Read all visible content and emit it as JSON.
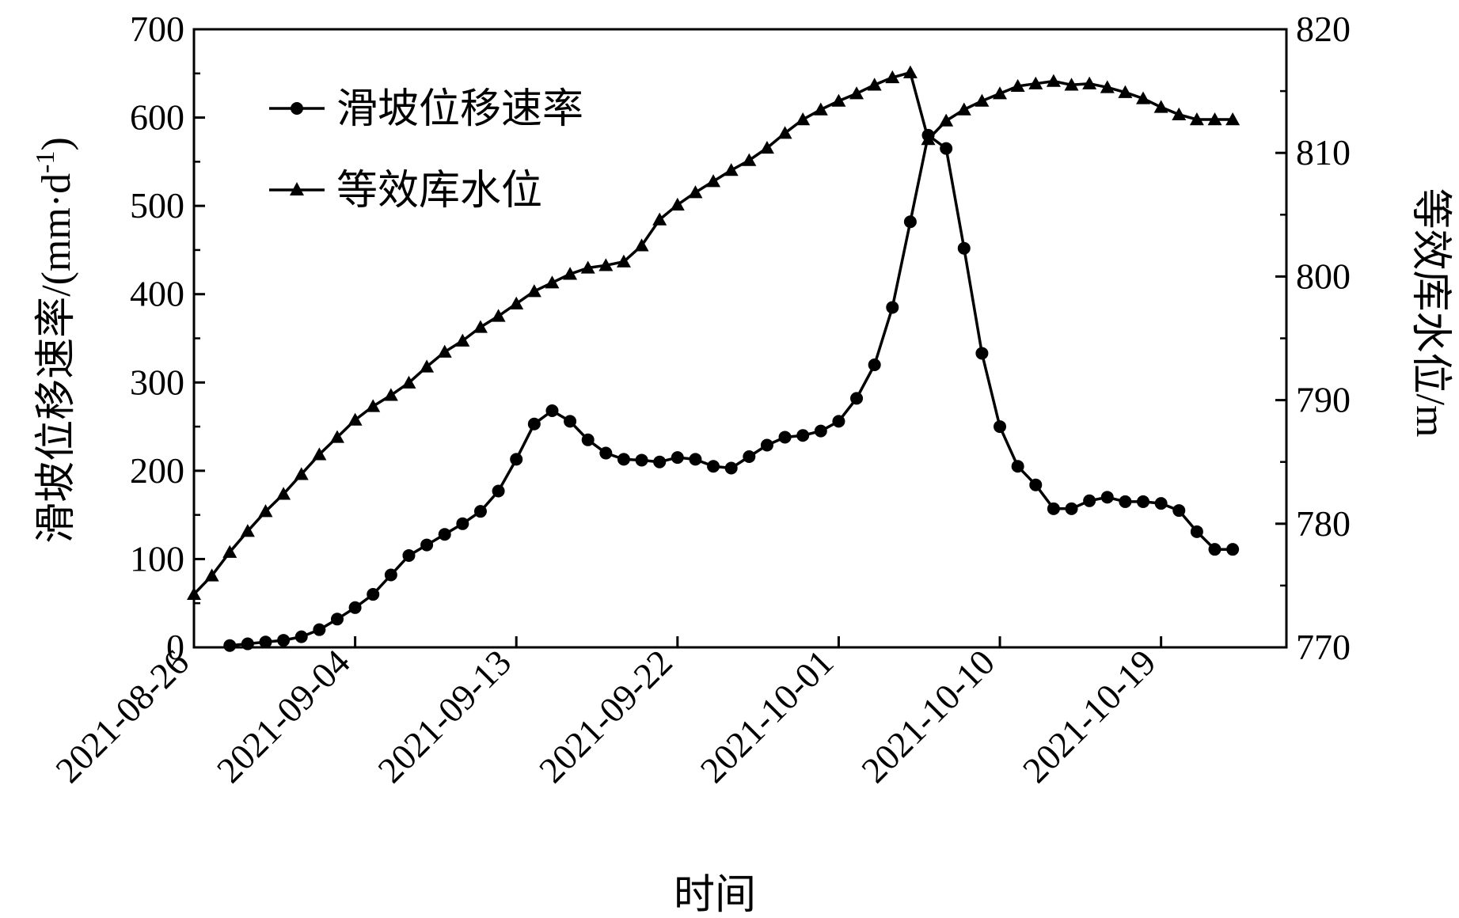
{
  "chart_data": {
    "type": "line",
    "xlabel": "时间",
    "ylabel_left": "滑坡位移速率/(mm·d",
    "ylabel_left_sup": "-1",
    "ylabel_left_close": ")",
    "ylabel_right": "等效库水位/m",
    "x_range": [
      "2021-08-26",
      "2021-10-26"
    ],
    "x_ticks": [
      "2021-08-26",
      "2021-09-04",
      "2021-09-13",
      "2021-09-22",
      "2021-10-01",
      "2021-10-10",
      "2021-10-19"
    ],
    "y_left_range": [
      0,
      700
    ],
    "y_left_ticks": [
      0,
      100,
      200,
      300,
      400,
      500,
      600,
      700
    ],
    "y_right_range": [
      770,
      820
    ],
    "y_right_ticks": [
      770,
      780,
      790,
      800,
      810,
      820
    ],
    "grid": false,
    "legend_position": "top-left",
    "series": [
      {
        "name": "滑坡位移速率",
        "axis": "left",
        "marker": "circle",
        "color": "#000000",
        "x": [
          "2021-08-28",
          "2021-08-29",
          "2021-08-30",
          "2021-08-31",
          "2021-09-01",
          "2021-09-02",
          "2021-09-03",
          "2021-09-04",
          "2021-09-05",
          "2021-09-06",
          "2021-09-07",
          "2021-09-08",
          "2021-09-09",
          "2021-09-10",
          "2021-09-11",
          "2021-09-12",
          "2021-09-13",
          "2021-09-14",
          "2021-09-15",
          "2021-09-16",
          "2021-09-17",
          "2021-09-18",
          "2021-09-19",
          "2021-09-20",
          "2021-09-21",
          "2021-09-22",
          "2021-09-23",
          "2021-09-24",
          "2021-09-25",
          "2021-09-26",
          "2021-09-27",
          "2021-09-28",
          "2021-09-29",
          "2021-09-30",
          "2021-10-01",
          "2021-10-02",
          "2021-10-03",
          "2021-10-04",
          "2021-10-05",
          "2021-10-06",
          "2021-10-07",
          "2021-10-08",
          "2021-10-09",
          "2021-10-10",
          "2021-10-11",
          "2021-10-12",
          "2021-10-13",
          "2021-10-14",
          "2021-10-15",
          "2021-10-16",
          "2021-10-17",
          "2021-10-18",
          "2021-10-19",
          "2021-10-20",
          "2021-10-21",
          "2021-10-22",
          "2021-10-23"
        ],
        "values": [
          2,
          4,
          6,
          8,
          12,
          20,
          32,
          45,
          60,
          82,
          104,
          116,
          128,
          140,
          154,
          177,
          213,
          253,
          268,
          256,
          235,
          220,
          213,
          212,
          210,
          215,
          213,
          205,
          203,
          216,
          229,
          238,
          240,
          245,
          256,
          282,
          320,
          385,
          482,
          580,
          565,
          452,
          333,
          250,
          205,
          184,
          157,
          157,
          166,
          170,
          165,
          165,
          163,
          155,
          131,
          111,
          111
        ]
      },
      {
        "name": "等效库水位",
        "axis": "right",
        "marker": "triangle",
        "color": "#000000",
        "x": [
          "2021-08-26",
          "2021-08-27",
          "2021-08-28",
          "2021-08-29",
          "2021-08-30",
          "2021-08-31",
          "2021-09-01",
          "2021-09-02",
          "2021-09-03",
          "2021-09-04",
          "2021-09-05",
          "2021-09-06",
          "2021-09-07",
          "2021-09-08",
          "2021-09-09",
          "2021-09-10",
          "2021-09-11",
          "2021-09-12",
          "2021-09-13",
          "2021-09-14",
          "2021-09-15",
          "2021-09-16",
          "2021-09-17",
          "2021-09-18",
          "2021-09-19",
          "2021-09-20",
          "2021-09-21",
          "2021-09-22",
          "2021-09-23",
          "2021-09-24",
          "2021-09-25",
          "2021-09-26",
          "2021-09-27",
          "2021-09-28",
          "2021-09-29",
          "2021-09-30",
          "2021-10-01",
          "2021-10-02",
          "2021-10-03",
          "2021-10-04",
          "2021-10-05",
          "2021-10-06",
          "2021-10-07",
          "2021-10-08",
          "2021-10-09",
          "2021-10-10",
          "2021-10-11",
          "2021-10-12",
          "2021-10-13",
          "2021-10-14",
          "2021-10-15",
          "2021-10-16",
          "2021-10-17",
          "2021-10-18",
          "2021-10-19",
          "2021-10-20",
          "2021-10-21",
          "2021-10-22",
          "2021-10-23"
        ],
        "values": [
          774.3,
          775.8,
          777.7,
          779.4,
          781.0,
          782.4,
          784.0,
          785.6,
          787.0,
          788.4,
          789.5,
          790.4,
          791.4,
          792.7,
          793.9,
          794.8,
          795.9,
          796.8,
          797.8,
          798.8,
          799.5,
          800.2,
          800.7,
          800.9,
          801.2,
          802.5,
          804.6,
          805.8,
          806.8,
          807.7,
          808.6,
          809.4,
          810.4,
          811.6,
          812.7,
          813.5,
          814.2,
          814.8,
          815.5,
          816.1,
          816.5,
          811.1,
          812.6,
          813.5,
          814.2,
          814.8,
          815.4,
          815.6,
          815.8,
          815.5,
          815.6,
          815.3,
          814.9,
          814.4,
          813.7,
          813.1,
          812.7,
          812.7,
          812.7
        ]
      }
    ]
  }
}
